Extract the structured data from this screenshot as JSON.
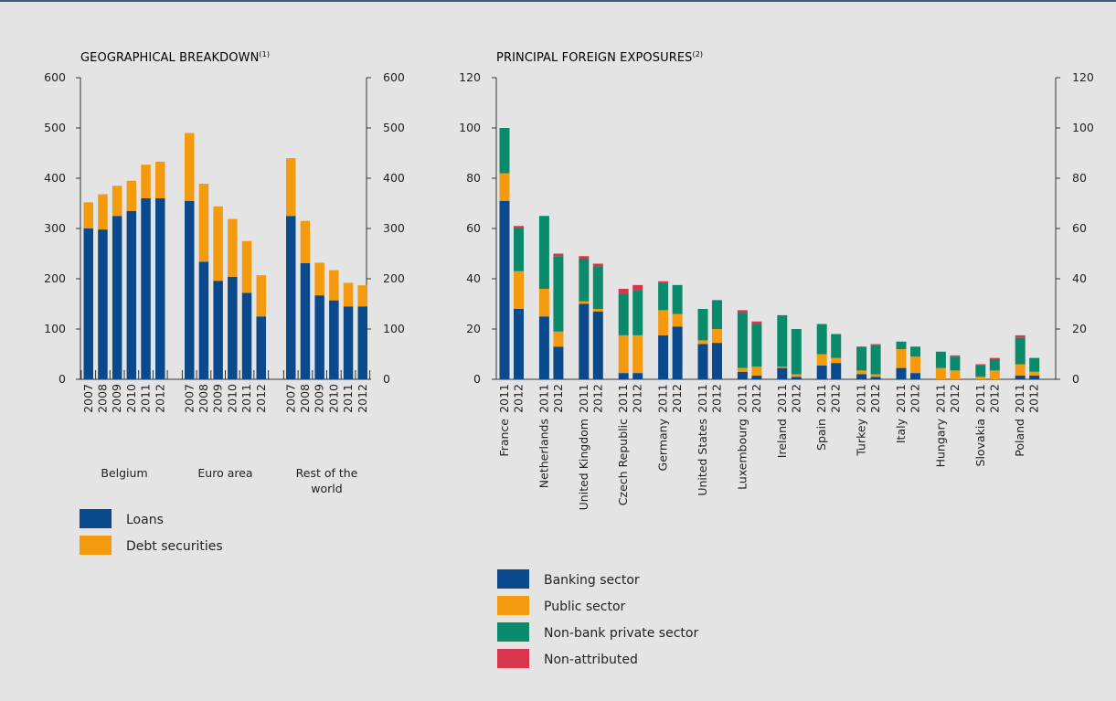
{
  "colors": {
    "loans": "#0a4a8c",
    "debt": "#f39a0e",
    "banking": "#0a4a8c",
    "public": "#f39a0e",
    "nonbank": "#0a8a6a",
    "nonattr": "#d8364c"
  },
  "chart_data": [
    {
      "type": "bar",
      "title": "GEOGRAPHICAL BREAKDOWN",
      "title_note": "(1)",
      "ylim": [
        0,
        600
      ],
      "yticks": [
        "0",
        "100",
        "200",
        "300",
        "400",
        "500",
        "600"
      ],
      "groups": [
        {
          "name": "Belgium",
          "years": [
            "2007",
            "2008",
            "2009",
            "2010",
            "2011",
            "2012"
          ],
          "loans": [
            300,
            298,
            325,
            335,
            360,
            360
          ],
          "debt": [
            52,
            70,
            60,
            60,
            67,
            73
          ]
        },
        {
          "name": "Euro area",
          "years": [
            "2007",
            "2008",
            "2009",
            "2010",
            "2011",
            "2012"
          ],
          "loans": [
            355,
            234,
            196,
            204,
            172,
            125
          ],
          "debt": [
            135,
            155,
            148,
            115,
            103,
            82
          ]
        },
        {
          "name": "Rest of the world",
          "years": [
            "2007",
            "2008",
            "2009",
            "2010",
            "2011",
            "2012"
          ],
          "loans": [
            325,
            231,
            167,
            157,
            145,
            145
          ],
          "debt": [
            115,
            84,
            65,
            60,
            47,
            42
          ]
        }
      ],
      "legend": [
        {
          "label": "Loans",
          "color_key": "loans"
        },
        {
          "label": "Debt securities",
          "color_key": "debt"
        }
      ]
    },
    {
      "type": "bar",
      "title": "PRINCIPAL FOREIGN EXPOSURES",
      "title_note": "(2)",
      "ylim": [
        0,
        120
      ],
      "yticks": [
        "0",
        "20",
        "40",
        "60",
        "80",
        "100",
        "120"
      ],
      "years": [
        "2011",
        "2012"
      ],
      "categories": [
        {
          "name": "France",
          "bars": [
            [
              71,
              11,
              18,
              0
            ],
            [
              28,
              15,
              17,
              1
            ]
          ]
        },
        {
          "name": "Netherlands",
          "bars": [
            [
              25,
              11,
              29,
              0
            ],
            [
              13,
              6,
              30,
              1
            ]
          ]
        },
        {
          "name": "United Kingdom",
          "bars": [
            [
              30,
              1,
              17,
              1
            ],
            [
              27,
              1,
              17,
              1
            ]
          ]
        },
        {
          "name": "Czech Republic",
          "bars": [
            [
              2.5,
              15,
              16.5,
              2
            ],
            [
              2.5,
              15,
              18,
              2
            ]
          ]
        },
        {
          "name": "Germany",
          "bars": [
            [
              17.5,
              10,
              11,
              0.5
            ],
            [
              21,
              5,
              11.5,
              0
            ]
          ]
        },
        {
          "name": "United States",
          "bars": [
            [
              14,
              1.5,
              12.5,
              0
            ],
            [
              14.5,
              5.5,
              11.5,
              0
            ]
          ]
        },
        {
          "name": "Luxembourg",
          "bars": [
            [
              3,
              1.5,
              22,
              1
            ],
            [
              1.5,
              3.5,
              17,
              1
            ]
          ]
        },
        {
          "name": "Ireland",
          "bars": [
            [
              4.5,
              0.5,
              20.5,
              0
            ],
            [
              1,
              1,
              18,
              0
            ]
          ]
        },
        {
          "name": "Spain",
          "bars": [
            [
              5.5,
              4.5,
              12,
              0
            ],
            [
              6.5,
              2,
              9.5,
              0
            ]
          ]
        },
        {
          "name": "Turkey",
          "bars": [
            [
              2,
              1.5,
              9.5,
              0
            ],
            [
              1,
              1,
              11.5,
              0.5
            ]
          ]
        },
        {
          "name": "Italy",
          "bars": [
            [
              4.5,
              7.5,
              3,
              0
            ],
            [
              2.5,
              6.5,
              4,
              0
            ]
          ]
        },
        {
          "name": "Hungary",
          "bars": [
            [
              0,
              4.5,
              6.5,
              0
            ],
            [
              0,
              3.5,
              5.5,
              0.5
            ]
          ]
        },
        {
          "name": "Slovakia",
          "bars": [
            [
              0,
              1,
              4.5,
              0.5
            ],
            [
              0,
              3.5,
              4.5,
              0.5
            ]
          ]
        },
        {
          "name": "Poland",
          "bars": [
            [
              1.5,
              4.5,
              10.5,
              1
            ],
            [
              1.5,
              1.5,
              5.5,
              0
            ]
          ]
        }
      ],
      "legend": [
        {
          "label": "Banking sector",
          "color_key": "banking"
        },
        {
          "label": "Public sector",
          "color_key": "public"
        },
        {
          "label": "Non-bank private sector",
          "color_key": "nonbank"
        },
        {
          "label": "Non-attributed",
          "color_key": "nonattr"
        }
      ]
    }
  ]
}
